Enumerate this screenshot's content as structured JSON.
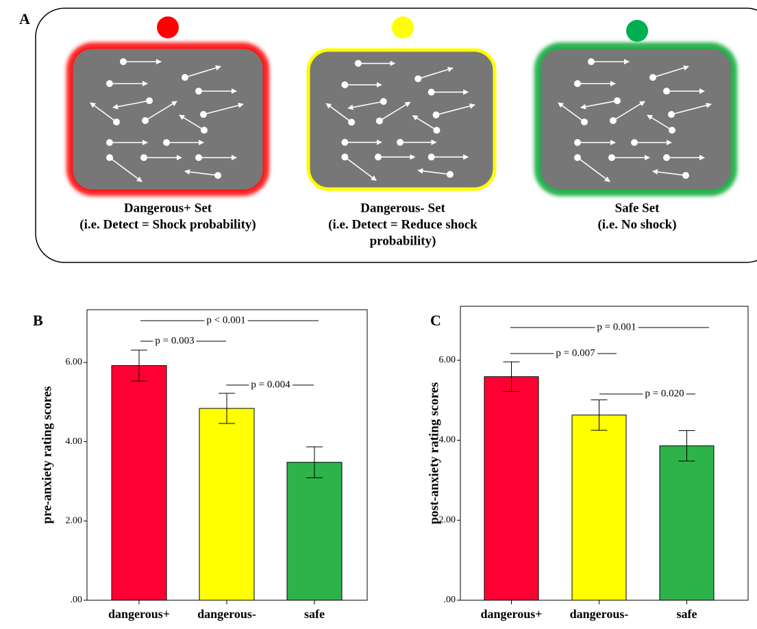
{
  "panel_a": {
    "letter": "A",
    "sets": [
      {
        "dot_color": "#ff0000",
        "border_color": "#ff1a1a",
        "title": "Dangerous+ Set",
        "lines": [
          "(i.e. Detect = Shock probability)"
        ]
      },
      {
        "dot_color": "#ffff00",
        "border_color": "#ffff00",
        "title": "Dangerous- Set",
        "lines": [
          "(i.e. Detect = Reduce shock",
          "probability)"
        ]
      },
      {
        "dot_color": "#00b050",
        "border_color": "#22b04a",
        "title": "Safe Set",
        "lines": [
          "(i.e. No shock)"
        ]
      }
    ]
  },
  "chart_data": [
    {
      "type": "bar",
      "panel": "B",
      "y_label": "pre-anxiety rating scores",
      "categories": [
        "dangerous+",
        "dangerous-",
        "safe"
      ],
      "values": [
        5.92,
        4.84,
        3.48
      ],
      "errors": [
        0.39,
        0.38,
        0.39
      ],
      "colors": [
        "#ff0033",
        "#ffff00",
        "#2db34a"
      ],
      "ylim": [
        0,
        7.33
      ],
      "yticks": [
        {
          "value": 0,
          "label": ".00"
        },
        {
          "value": 2,
          "label": "2.00"
        },
        {
          "value": 4,
          "label": "4.00"
        },
        {
          "value": 6,
          "label": "6.00"
        }
      ],
      "annotations": [
        "p < 0.001",
        "p = 0.003",
        "p = 0.004"
      ]
    },
    {
      "type": "bar",
      "panel": "C",
      "y_label": "post-anxiety rating scores",
      "categories": [
        "dangerous+",
        "dangerous-",
        "safe"
      ],
      "values": [
        5.59,
        4.63,
        3.86
      ],
      "errors": [
        0.37,
        0.38,
        0.38
      ],
      "colors": [
        "#ff0033",
        "#ffff00",
        "#2db34a"
      ],
      "ylim": [
        0,
        7.35
      ],
      "yticks": [
        {
          "value": 0,
          "label": ".00"
        },
        {
          "value": 2,
          "label": "2.00"
        },
        {
          "value": 4,
          "label": "4.00"
        },
        {
          "value": 6,
          "label": "6.00"
        }
      ],
      "annotations": [
        "p = 0.001",
        "p = 0.007",
        "p = 0.020"
      ]
    }
  ]
}
